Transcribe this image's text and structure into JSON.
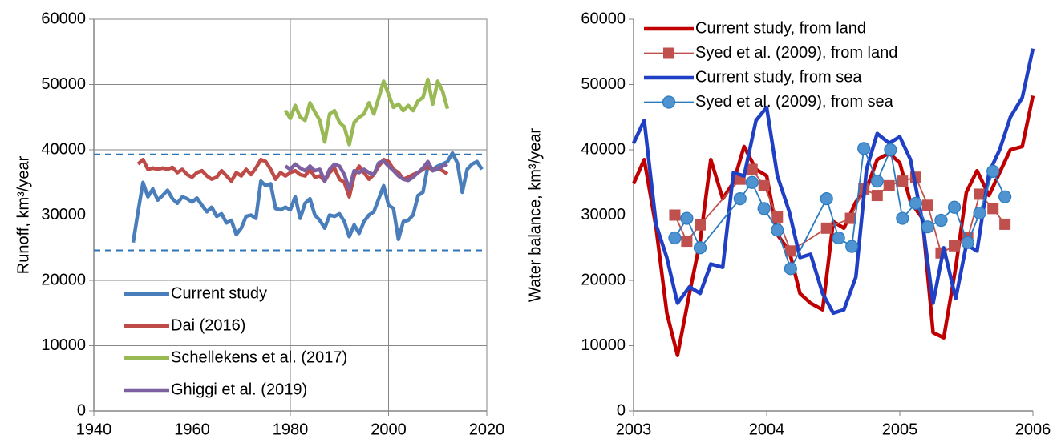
{
  "chart_data": [
    {
      "type": "line",
      "ylabel": "Runoff, km³/year",
      "xlim": [
        1940,
        2020
      ],
      "xticks": [
        1940,
        1960,
        1980,
        2000,
        2020
      ],
      "ylim": [
        0,
        60000
      ],
      "yticks": [
        0,
        10000,
        20000,
        30000,
        40000,
        50000,
        60000
      ],
      "grid": true,
      "legend": "lower left",
      "hlines": [
        39300,
        24600
      ],
      "hline_color": "#2e75b6",
      "x": [
        1948,
        1949,
        1950,
        1951,
        1952,
        1953,
        1954,
        1955,
        1956,
        1957,
        1958,
        1959,
        1960,
        1961,
        1962,
        1963,
        1964,
        1965,
        1966,
        1967,
        1968,
        1969,
        1970,
        1971,
        1972,
        1973,
        1974,
        1975,
        1976,
        1977,
        1978,
        1979,
        1980,
        1981,
        1982,
        1983,
        1984,
        1985,
        1986,
        1987,
        1988,
        1989,
        1990,
        1991,
        1992,
        1993,
        1994,
        1995,
        1996,
        1997,
        1998,
        1999,
        2000,
        2001,
        2002,
        2003,
        2004,
        2005,
        2006,
        2007,
        2008,
        2009,
        2010,
        2011,
        2012,
        2013,
        2014,
        2015,
        2016,
        2017,
        2018,
        2019
      ],
      "series": [
        {
          "name": "Current study",
          "color": "#4a7ebb",
          "values": [
            25800,
            30500,
            35000,
            32800,
            34000,
            32300,
            33000,
            33800,
            32500,
            31800,
            32800,
            32500,
            32000,
            32600,
            31500,
            30500,
            31200,
            29800,
            30200,
            28800,
            29200,
            27000,
            28000,
            29800,
            30000,
            29500,
            35200,
            34500,
            34800,
            31000,
            30800,
            31200,
            30800,
            32800,
            29500,
            31800,
            32500,
            30000,
            29200,
            28000,
            30000,
            29800,
            30200,
            29000,
            26700,
            28500,
            27200,
            29000,
            30000,
            30500,
            32500,
            34500,
            31500,
            31000,
            26300,
            29000,
            29200,
            30000,
            33000,
            33500,
            37500,
            37000,
            37500,
            37800,
            38200,
            39500,
            38000,
            33500,
            37000,
            37800,
            38200,
            37000
          ]
        },
        {
          "name": "Dai (2016)",
          "color": "#be4b48",
          "values": [
            null,
            37800,
            38500,
            37000,
            37200,
            37000,
            37200,
            37000,
            37300,
            36500,
            37000,
            36200,
            35800,
            36500,
            36800,
            36000,
            35500,
            35800,
            36800,
            36000,
            35200,
            36500,
            36000,
            37000,
            36200,
            37200,
            38500,
            38200,
            37000,
            35500,
            36500,
            36000,
            36500,
            36800,
            36200,
            36000,
            37000,
            35800,
            36000,
            35200,
            36500,
            37200,
            35500,
            35000,
            32800,
            36000,
            37500,
            36500,
            35500,
            36200,
            37500,
            38500,
            38200,
            37000,
            36500,
            35500,
            35800,
            36200,
            36500,
            37000,
            37500,
            36800,
            37200,
            36800,
            36300,
            null,
            null,
            null,
            null,
            null,
            null,
            null
          ]
        },
        {
          "name": "Schellekens et al. (2017)",
          "color": "#98b954",
          "values": [
            null,
            null,
            null,
            null,
            null,
            null,
            null,
            null,
            null,
            null,
            null,
            null,
            null,
            null,
            null,
            null,
            null,
            null,
            null,
            null,
            null,
            null,
            null,
            null,
            null,
            null,
            null,
            null,
            null,
            null,
            null,
            46000,
            44800,
            46800,
            45000,
            44500,
            47200,
            45800,
            44500,
            41200,
            45500,
            46000,
            44200,
            43500,
            40800,
            44200,
            45000,
            45500,
            47200,
            45500,
            48000,
            50500,
            48500,
            46500,
            47000,
            46000,
            46800,
            46000,
            47500,
            48000,
            50800,
            47000,
            50500,
            49000,
            46300,
            null,
            null,
            null,
            null,
            null,
            null,
            null
          ]
        },
        {
          "name": "Ghiggi et al. (2019)",
          "color": "#7d60a0",
          "values": [
            null,
            null,
            null,
            null,
            null,
            null,
            null,
            null,
            null,
            null,
            null,
            null,
            null,
            null,
            null,
            null,
            null,
            null,
            null,
            null,
            null,
            null,
            null,
            null,
            null,
            null,
            null,
            null,
            null,
            null,
            null,
            37500,
            37000,
            37800,
            37200,
            36800,
            37500,
            36800,
            37000,
            35200,
            37000,
            37800,
            37500,
            36200,
            34000,
            36800,
            36500,
            37000,
            36500,
            36200,
            38000,
            38300,
            37500,
            36800,
            36000,
            35500,
            35300,
            35800,
            36500,
            37200,
            38200,
            36800,
            37000,
            37500,
            37800,
            null,
            null,
            null,
            null,
            null,
            null,
            null
          ]
        }
      ]
    },
    {
      "type": "line",
      "ylabel": "Water balance, km³/year",
      "xlim": [
        2003,
        2006
      ],
      "xticks": [
        2003,
        2004,
        2005,
        2006
      ],
      "ylim": [
        0,
        60000
      ],
      "yticks": [
        0,
        10000,
        20000,
        30000,
        40000,
        50000,
        60000
      ],
      "grid": false,
      "legend": "upper left",
      "x": [
        2003,
        2003.08,
        2003.17,
        2003.25,
        2003.33,
        2003.42,
        2003.5,
        2003.58,
        2003.67,
        2003.75,
        2003.83,
        2003.92,
        2004,
        2004.08,
        2004.17,
        2004.25,
        2004.33,
        2004.42,
        2004.5,
        2004.58,
        2004.67,
        2004.75,
        2004.83,
        2004.92,
        2005,
        2005.08,
        2005.17,
        2005.25,
        2005.33,
        2005.42,
        2005.5,
        2005.58,
        2005.67,
        2005.75,
        2005.83,
        2005.92,
        2006
      ],
      "series": [
        {
          "name": "Current study, from land",
          "color": "#c00000",
          "values": [
            34800,
            38500,
            28000,
            15000,
            8500,
            18000,
            26000,
            38500,
            32500,
            35000,
            40500,
            37000,
            36000,
            27000,
            24500,
            18000,
            16500,
            15500,
            29000,
            28000,
            32000,
            34000,
            38500,
            39500,
            38000,
            32000,
            29500,
            12000,
            11200,
            22000,
            33500,
            36800,
            33000,
            36500,
            40000,
            40500,
            48300
          ]
        },
        {
          "name": "Syed et al. (2009), from land",
          "color": "#c0504d",
          "marker": "square",
          "x": [
            2003.31,
            2003.4,
            2003.5,
            2003.8,
            2003.89,
            2003.98,
            2004.08,
            2004.18,
            2004.45,
            2004.63,
            2004.73,
            2004.83,
            2004.92,
            2005.02,
            2005.12,
            2005.21,
            2005.31,
            2005.41,
            2005.51,
            2005.6,
            2005.7,
            2005.79
          ],
          "values": [
            30000,
            26000,
            28500,
            35500,
            37000,
            34500,
            29700,
            24500,
            28000,
            29500,
            34000,
            33000,
            34500,
            35200,
            35800,
            31500,
            24200,
            25300,
            26500,
            33200,
            31000,
            28600
          ]
        },
        {
          "name": "Current study, from sea",
          "color": "#1f3fc4",
          "values": [
            41000,
            44500,
            28500,
            23500,
            16500,
            19000,
            18000,
            22500,
            22000,
            36500,
            36000,
            44500,
            46500,
            36000,
            30500,
            23500,
            24000,
            18000,
            15000,
            15500,
            20500,
            37000,
            42500,
            41000,
            42000,
            38500,
            29000,
            16500,
            25000,
            17200,
            25500,
            24500,
            36500,
            40000,
            45000,
            48000,
            55500
          ]
        },
        {
          "name": "Syed et al. (2009), from sea",
          "color": "#2a7bc0",
          "marker": "circle",
          "marker_color": "#4f93d0",
          "x": [
            2003.31,
            2003.4,
            2003.5,
            2003.8,
            2003.89,
            2003.98,
            2004.08,
            2004.18,
            2004.45,
            2004.54,
            2004.64,
            2004.73,
            2004.83,
            2004.93,
            2005.02,
            2005.12,
            2005.21,
            2005.31,
            2005.41,
            2005.51,
            2005.6,
            2005.7,
            2005.79
          ],
          "values": [
            26500,
            29500,
            25000,
            32500,
            35000,
            31000,
            27700,
            21800,
            32500,
            26500,
            25200,
            40200,
            35200,
            40000,
            29500,
            31800,
            28200,
            29200,
            31200,
            25800,
            30300,
            36700,
            32800
          ]
        }
      ]
    }
  ]
}
